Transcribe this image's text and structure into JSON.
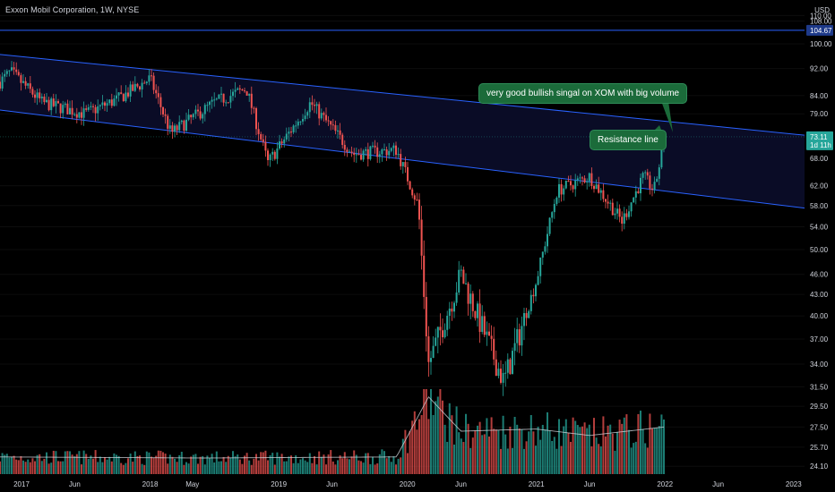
{
  "header": {
    "title": "Exxon Mobil Corporation, 1W, NYSE",
    "currency": "USD"
  },
  "price_axis": {
    "labels": [
      "110.00",
      "108.00",
      "100.00",
      "92.00",
      "84.00",
      "79.00",
      "68.00",
      "62.00",
      "58.00",
      "54.00",
      "50.00",
      "46.00",
      "43.00",
      "40.00",
      "37.00",
      "34.00",
      "31.50",
      "29.50",
      "27.50",
      "25.70",
      "24.10"
    ],
    "tag_blue": "104.67",
    "tag_green_price": "73.11",
    "tag_green_countdown": "1d 11h"
  },
  "time_axis": {
    "labels": [
      "2017",
      "Jun",
      "2018",
      "May",
      "2019",
      "Jun",
      "2020",
      "Jun",
      "2021",
      "Jun",
      "2022",
      "Jun",
      "2023"
    ]
  },
  "annotations": {
    "bullish_note": "very good bullish singal on XOM with big volume",
    "resistance_note": "Resistance line"
  },
  "colors": {
    "up": "#26a69a",
    "down": "#ef5350",
    "channel": "#2962ff",
    "channel_fill": "#0b0d2a",
    "callout": "#1b6b3a",
    "volume_ma": "#d1d4dc"
  },
  "chart_data": {
    "type": "candlestick",
    "title": "Exxon Mobil Corporation, 1W, NYSE",
    "log_scale": true,
    "ylim": [
      24.1,
      112
    ],
    "x_range": [
      "2016-11",
      "2023-02"
    ],
    "horizontal_line": 104.67,
    "last_price": 73.11,
    "channel": {
      "upper": [
        {
          "x": "2016-11",
          "y": 96.5
        },
        {
          "x": "2023-02",
          "y": 73.5
        }
      ],
      "lower": [
        {
          "x": "2016-11",
          "y": 80.0
        },
        {
          "x": "2023-02",
          "y": 57.5
        }
      ]
    },
    "price_path": [
      {
        "x": "2016-11",
        "y": 88
      },
      {
        "x": "2016-12",
        "y": 91
      },
      {
        "x": "2017-03",
        "y": 82
      },
      {
        "x": "2017-07",
        "y": 79
      },
      {
        "x": "2017-10",
        "y": 83
      },
      {
        "x": "2018-01",
        "y": 89
      },
      {
        "x": "2018-03",
        "y": 74
      },
      {
        "x": "2018-07",
        "y": 82
      },
      {
        "x": "2018-10",
        "y": 86
      },
      {
        "x": "2018-12",
        "y": 67
      },
      {
        "x": "2019-04",
        "y": 82
      },
      {
        "x": "2019-08",
        "y": 69
      },
      {
        "x": "2019-12",
        "y": 70
      },
      {
        "x": "2020-02",
        "y": 58
      },
      {
        "x": "2020-03",
        "y": 34
      },
      {
        "x": "2020-06",
        "y": 46
      },
      {
        "x": "2020-10",
        "y": 32
      },
      {
        "x": "2021-01",
        "y": 45
      },
      {
        "x": "2021-03",
        "y": 61
      },
      {
        "x": "2021-06",
        "y": 64
      },
      {
        "x": "2021-09",
        "y": 55
      },
      {
        "x": "2021-11",
        "y": 64
      },
      {
        "x": "2021-12",
        "y": 61
      },
      {
        "x": "2022-01",
        "y": 73
      }
    ],
    "volume_profile": [
      {
        "x": "2016-11",
        "v": 0.16
      },
      {
        "x": "2018-06",
        "v": 0.15
      },
      {
        "x": "2019-12",
        "v": 0.16
      },
      {
        "x": "2020-03",
        "v": 0.72
      },
      {
        "x": "2020-06",
        "v": 0.4
      },
      {
        "x": "2021-01",
        "v": 0.42
      },
      {
        "x": "2021-06",
        "v": 0.36
      },
      {
        "x": "2022-01",
        "v": 0.44
      }
    ]
  }
}
